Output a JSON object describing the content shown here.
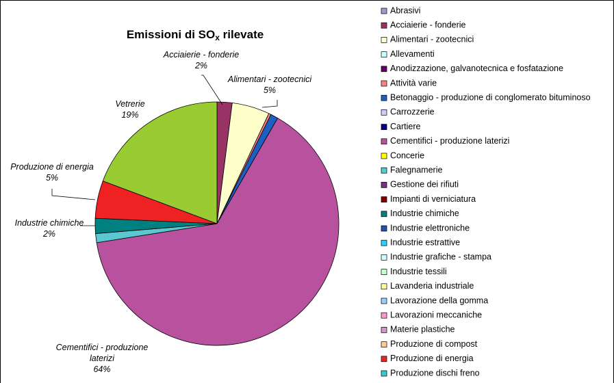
{
  "chart_data": {
    "type": "pie",
    "title": [
      "Emissioni di SO",
      "x",
      " rilevate"
    ],
    "categories": [
      "Abrasivi",
      "Acciaierie - fonderie",
      "Alimentari - zootecnici",
      "Allevamenti",
      "Anodizzazione, galvanotecnica e fosfatazione",
      "Attività varie",
      "Betonaggio - produzione di conglomerato bituminoso",
      "Carrozzerie",
      "Cartiere",
      "Cementifici - produzione laterizi",
      "Concerie",
      "Falegnamerie",
      "Gestione dei rifiuti",
      "Impianti di verniciatura",
      "Industrie chimiche",
      "Industrie elettroniche",
      "Industrie estrattive",
      "Industrie grafiche - stampa",
      "Industrie tessili",
      "Lavanderia industriale",
      "Lavorazione della gomma",
      "Lavorazioni meccaniche",
      "Materie plastiche",
      "Produzione di compost",
      "Produzione di energia",
      "Produzione dischi freno",
      "Vetrerie"
    ],
    "values": [
      0,
      2,
      5,
      0,
      0,
      0.3,
      1,
      0,
      0,
      64.2,
      0,
      1.2,
      0,
      0,
      2,
      0,
      0,
      0,
      0,
      0,
      0,
      0,
      0,
      0,
      5,
      0,
      19.3
    ],
    "value_labels": [
      null,
      "2%",
      "5%",
      null,
      null,
      null,
      null,
      null,
      null,
      "64%",
      null,
      null,
      null,
      null,
      "2%",
      null,
      null,
      null,
      null,
      null,
      null,
      null,
      null,
      null,
      "5%",
      null,
      "19%"
    ],
    "colors": [
      "#9a9acd",
      "#993366",
      "#ffffcc",
      "#ccffff",
      "#660066",
      "#ff8080",
      "#1f5fbf",
      "#ccccff",
      "#000080",
      "#b8529f",
      "#ffff00",
      "#5bc8d0",
      "#7b2d8b",
      "#800000",
      "#008080",
      "#2255aa",
      "#33ccff",
      "#ccffff",
      "#ccffcc",
      "#ffff99",
      "#99ccff",
      "#ff99cc",
      "#cc99cc",
      "#ffcc99",
      "#ee2222",
      "#33cccc",
      "#99cc33"
    ]
  }
}
